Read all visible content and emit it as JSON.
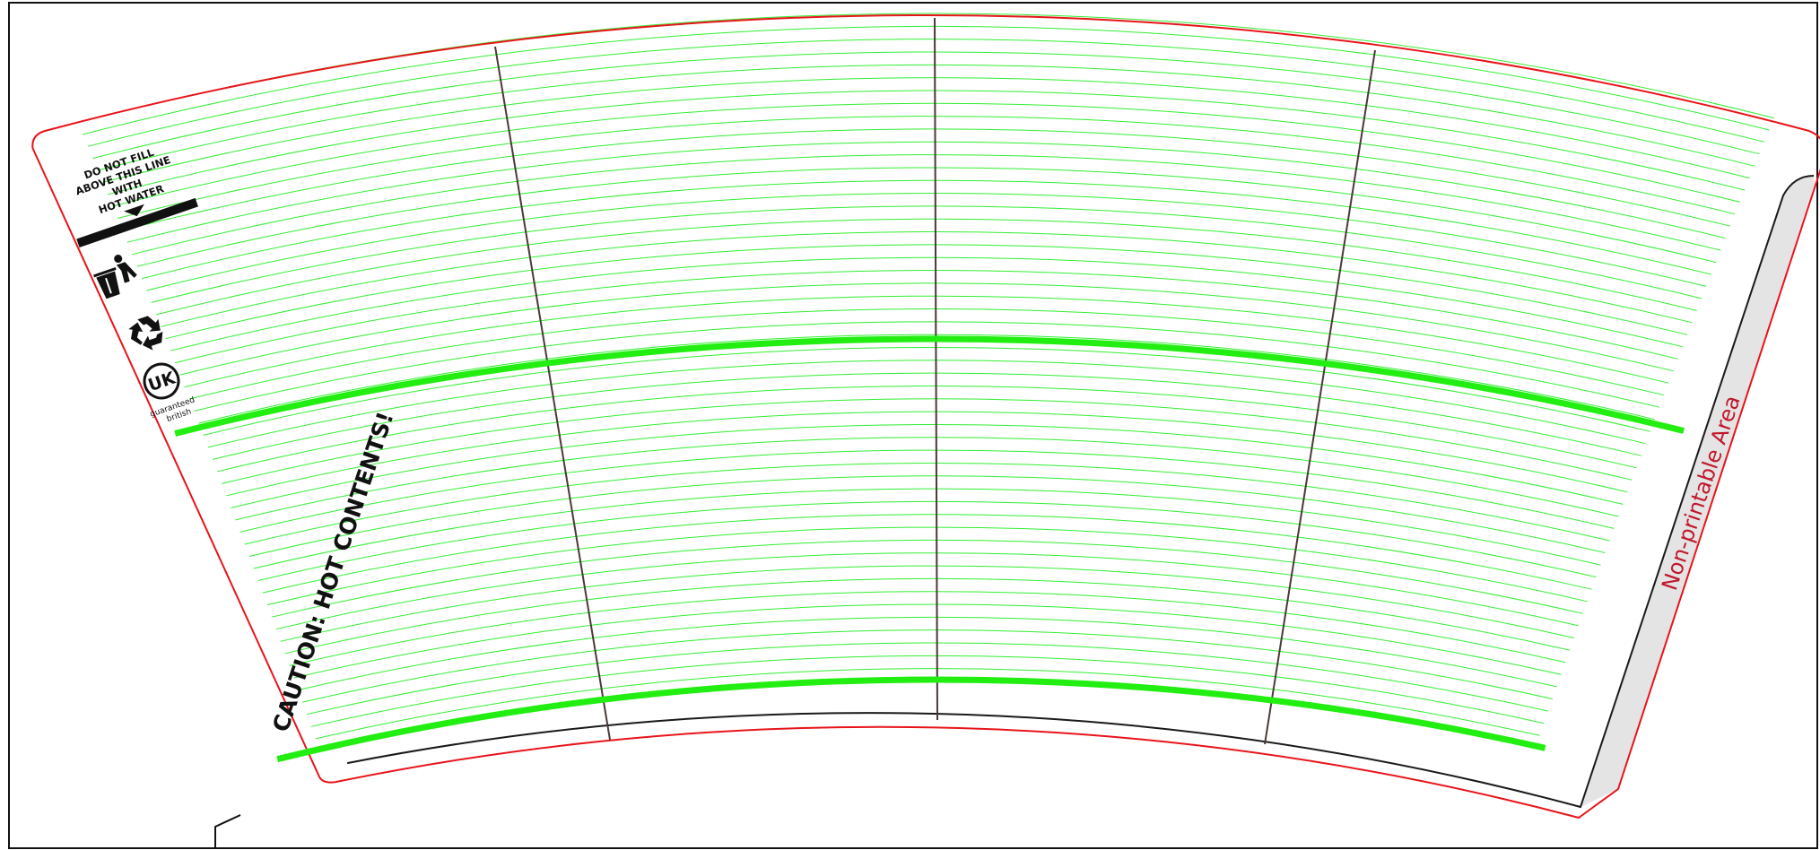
{
  "warning": {
    "lines": [
      "DO NOT FILL",
      "ABOVE THIS LINE",
      "WITH",
      "HOT WATER"
    ]
  },
  "caution": "CAUTION: HOT CONTENTS!",
  "non_printable": "Non-printable Area",
  "uk_badge": {
    "label": "UK",
    "line1": "guaranteed",
    "line2": "british"
  },
  "icons": [
    "tidyman-bin-icon",
    "recycle-icon",
    "uk-guaranteed-icon"
  ],
  "colors": {
    "guide_green": "#33ee33",
    "fill_line_green": "#22ee11",
    "cut_red": "#e8141a",
    "fold_black": "#1a1a1a",
    "panel_brown": "#4a3a38",
    "tab_gray": "#e4e4e4",
    "label_red": "#c0182c"
  }
}
